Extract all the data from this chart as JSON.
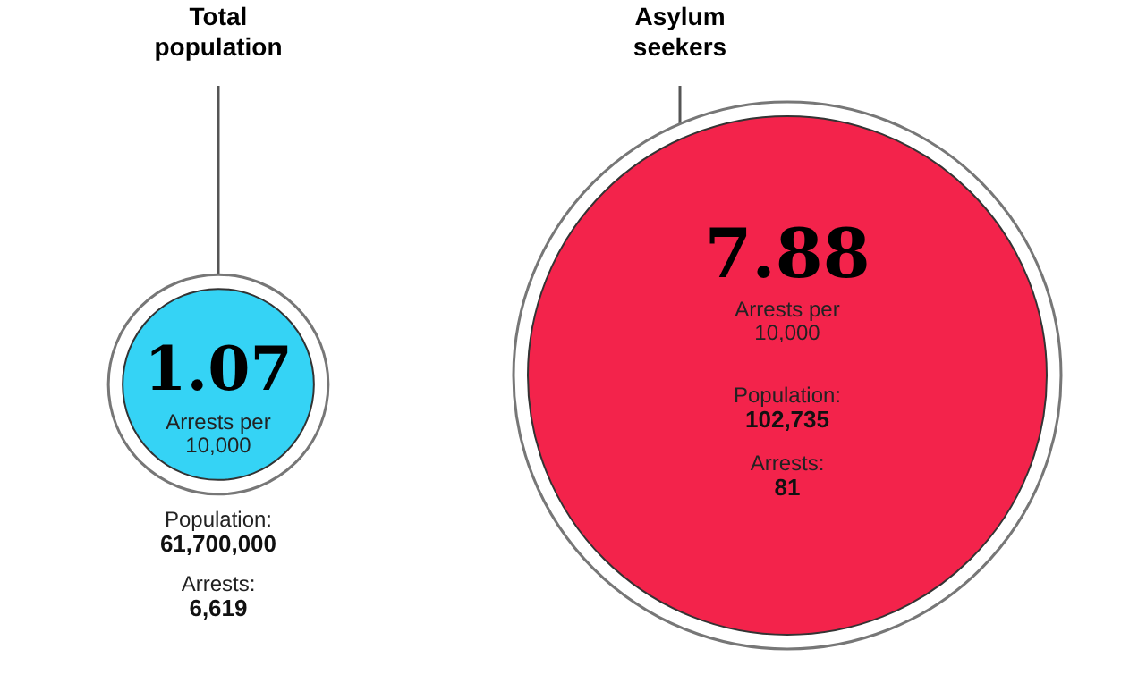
{
  "chart_data": {
    "type": "other",
    "categories": [
      "Total population",
      "Asylum seekers"
    ],
    "data_labels": true,
    "series": [
      {
        "name": "Arrests per 10,000",
        "colors": [
          "#35d3f5",
          "#f3234b"
        ],
        "values": [
          1.07,
          7.88
        ]
      }
    ],
    "annotations": [
      "Population: 61,700,000",
      "Arrests: 6,619",
      "Population: 102,735",
      "Arrests: 81"
    ]
  }
}
